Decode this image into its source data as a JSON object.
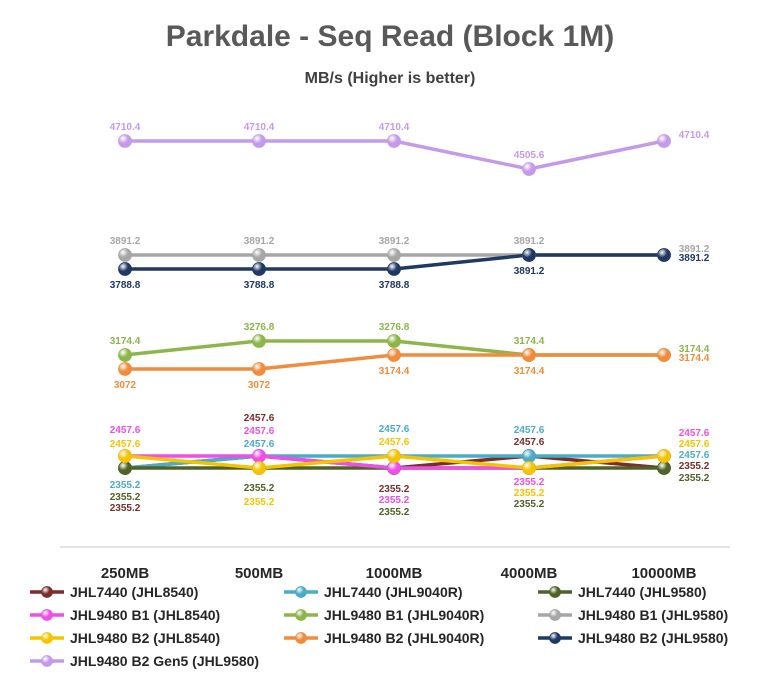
{
  "chart_data": {
    "type": "line",
    "title": "Parkdale - Seq Read (Block 1M)",
    "subtitle": "MB/s (Higher is better)",
    "categories": [
      "250MB",
      "500MB",
      "1000MB",
      "4000MB",
      "10000MB"
    ],
    "series": [
      {
        "name": "JHL7440 (JHL8540)",
        "color": "#7B2C2C",
        "values": [
          2355.2,
          2457.6,
          2355.2,
          2457.6,
          2355.2
        ]
      },
      {
        "name": "JHL7440 (JHL9040R)",
        "color": "#4BACC6",
        "values": [
          2355.2,
          2457.6,
          2457.6,
          2457.6,
          2457.6
        ]
      },
      {
        "name": "JHL7440 (JHL9580)",
        "color": "#4F6228",
        "values": [
          2355.2,
          2355.2,
          2355.2,
          2355.2,
          2355.2
        ]
      },
      {
        "name": "JHL9480 B1 (JHL8540)",
        "color": "#EE4FE6",
        "values": [
          2457.6,
          2457.6,
          2355.2,
          2355.2,
          2457.6
        ]
      },
      {
        "name": "JHL9480 B1 (JHL9040R)",
        "color": "#8DB54A",
        "values": [
          3174.4,
          3276.8,
          3276.8,
          3174.4,
          3174.4
        ]
      },
      {
        "name": "JHL9480 B1 (JHL9580)",
        "color": "#A6A6A6",
        "values": [
          3891.2,
          3891.2,
          3891.2,
          3891.2,
          3891.2
        ]
      },
      {
        "name": "JHL9480 B2 (JHL8540)",
        "color": "#F5C400",
        "values": [
          2457.6,
          2355.2,
          2457.6,
          2355.2,
          2457.6
        ]
      },
      {
        "name": "JHL9480 B2 (JHL9040R)",
        "color": "#F08C3C",
        "values": [
          3072,
          3072,
          3174.4,
          3174.4,
          3174.4
        ]
      },
      {
        "name": "JHL9480 B2 (JHL9580)",
        "color": "#1F3864",
        "values": [
          3788.8,
          3788.8,
          3788.8,
          3891.2,
          3891.2
        ]
      },
      {
        "name": "JHL9480 B2 Gen5 (JHL9580)",
        "color": "#C39BEA",
        "values": [
          4710.4,
          4710.4,
          4710.4,
          4505.6,
          4710.4
        ]
      }
    ],
    "ylim": [
      2200,
      5000
    ],
    "grid": false,
    "legend": "bottom",
    "labels": [
      {
        "series": 9,
        "text": [
          "4710.4",
          "4710.4",
          "4710.4",
          "4505.6",
          "4710.4"
        ],
        "pos": [
          "above",
          "above",
          "above",
          "above",
          "above"
        ]
      },
      {
        "series": 5,
        "text": [
          "3891.2",
          "3891.2",
          "3891.2",
          "3891.2",
          "3891.2"
        ],
        "pos": [
          "above",
          "above",
          "above",
          "above",
          "above"
        ]
      },
      {
        "series": 8,
        "text": [
          "3788.8",
          "3788.8",
          "3788.8",
          "3891.2",
          "3891.2"
        ],
        "pos": [
          "below",
          "below",
          "below",
          "below",
          "below"
        ]
      },
      {
        "series": 4,
        "text": [
          "3174.4",
          "3276.8",
          "3276.8",
          "3174.4",
          "3174.4"
        ],
        "pos": [
          "above",
          "above",
          "above",
          "above",
          "above"
        ]
      },
      {
        "series": 7,
        "text": [
          "3072",
          "3072",
          "3174.4",
          "3174.4",
          "3174.4"
        ],
        "pos": [
          "below",
          "below",
          "below",
          "below",
          "below"
        ]
      }
    ],
    "cluster_labels": [
      [
        "2457.6|#EE4FE6",
        "2457.6|#F5C400",
        "2355.2|#4BACC6",
        "2355.2|#4F6228",
        "2355.2|#7B2C2C"
      ],
      [
        "2457.6|#7B2C2C",
        "2457.6|#EE4FE6",
        "2457.6|#4BACC6",
        "2355.2|#4F6228",
        "2355.2|#F5C400"
      ],
      [
        "2457.6|#4BACC6",
        "2457.6|#F5C400",
        "2355.2|#7B2C2C",
        "2355.2|#EE4FE6",
        "2355.2|#4F6228"
      ],
      [
        "2457.6|#4BACC6",
        "2457.6|#7B2C2C",
        "2355.2|#EE4FE6",
        "2355.2|#F5C400",
        "2355.2|#4F6228"
      ],
      [
        "2457.6|#EE4FE6",
        "2457.6|#F5C400",
        "2457.6|#4BACC6",
        "2355.2|#7B2C2C",
        "2355.2|#4F6228"
      ]
    ]
  }
}
